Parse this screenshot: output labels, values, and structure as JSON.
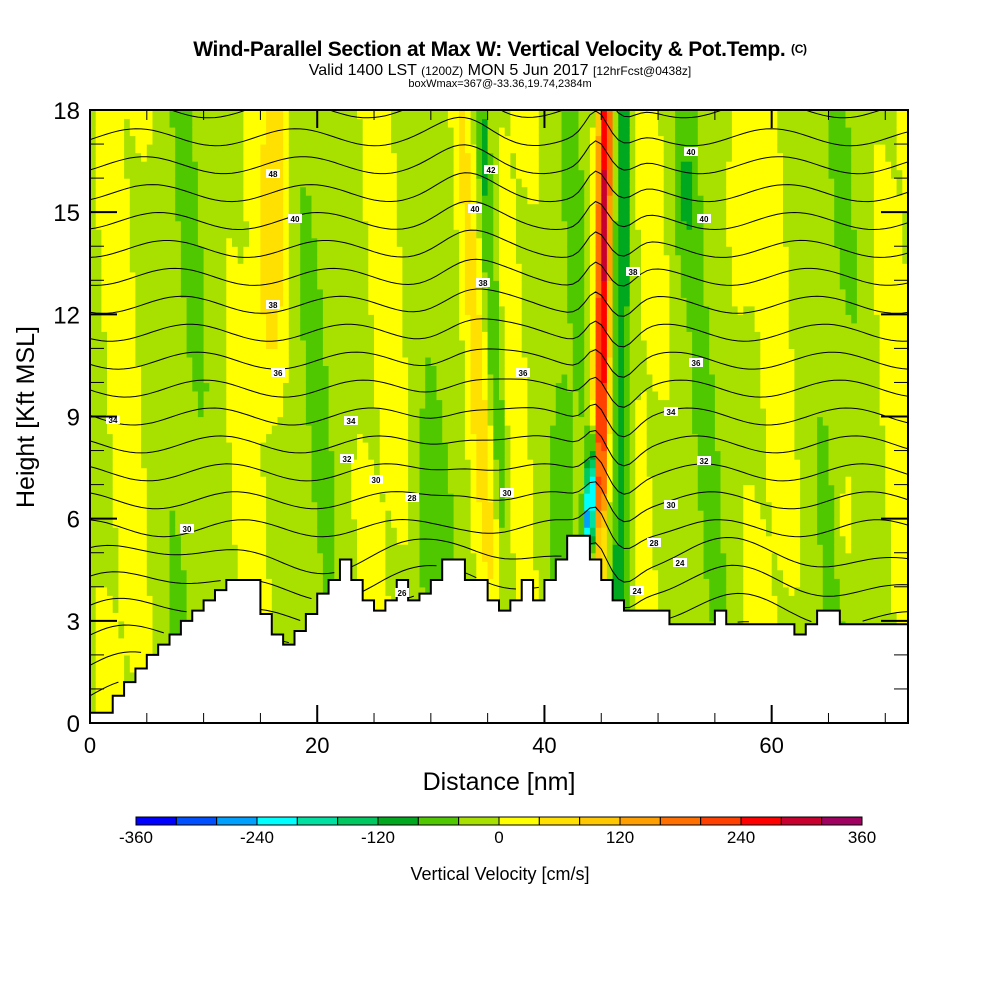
{
  "header": {
    "title": "Wind-Parallel Section at Max W: Vertical Velocity & Pot.Temp.",
    "copyright": "(C)",
    "subtitle_main": "Valid 1400 LST",
    "subtitle_utc": "(1200Z)",
    "subtitle_date": "MON 5 Jun 2017",
    "subtitle_fcst": "[12hrFcst@0438z]",
    "subtitle2": "boxWmax=367@-33.36,19.74,2384m"
  },
  "chart_data": {
    "type": "heatmap",
    "title": "Wind-Parallel Section at Max W: Vertical Velocity & Pot.Temp.",
    "xlabel": "Distance [nm]",
    "ylabel": "Height [Kft MSL]",
    "xlim": [
      0,
      72
    ],
    "ylim": [
      0,
      18
    ],
    "xticks": [
      "0",
      "20",
      "40",
      "60"
    ],
    "yticks": [
      "0",
      "3",
      "6",
      "9",
      "12",
      "15",
      "18"
    ],
    "colorbar": {
      "label": "Vertical Velocity [cm/s]",
      "ticks": [
        "-360",
        "-240",
        "-120",
        "0",
        "120",
        "240",
        "360"
      ],
      "bounds": [
        -360,
        360
      ],
      "step": 40,
      "colors": [
        "#0000ff",
        "#0050ff",
        "#00a0ff",
        "#00ffff",
        "#00e0a0",
        "#00c860",
        "#00a820",
        "#50c800",
        "#a8e000",
        "#ffff00",
        "#ffe000",
        "#ffc800",
        "#ffa000",
        "#ff7000",
        "#ff4000",
        "#ff0000",
        "#c80030",
        "#a00060"
      ]
    },
    "updraft_max_x_nm": 45,
    "downdraft_min_x_nm": 44,
    "contour_labels": [
      "48",
      "40",
      "38",
      "36",
      "34",
      "34",
      "32",
      "30",
      "26",
      "42",
      "40",
      "38",
      "36",
      "30",
      "28",
      "24",
      "40",
      "40",
      "38",
      "36",
      "34",
      "32",
      "30",
      "28",
      "24",
      "30"
    ]
  }
}
